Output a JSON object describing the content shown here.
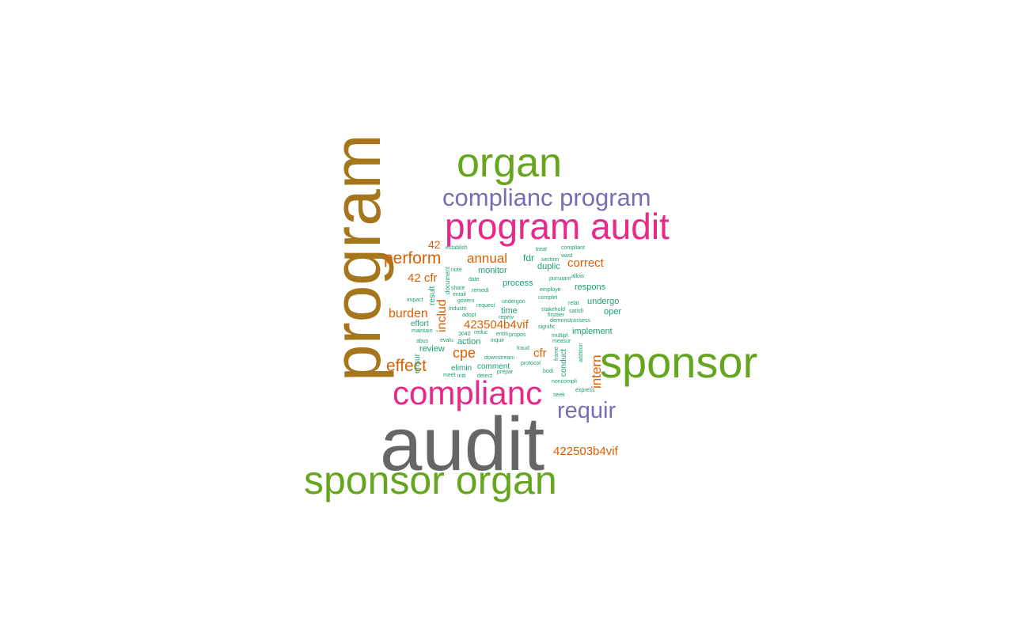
{
  "colors": {
    "teal": "#1b9e77",
    "orange": "#d95f02",
    "purple": "#7570b3",
    "pink": "#e7298a",
    "green": "#66a61e",
    "gold": "#a6761d",
    "gray": "#666666"
  },
  "words": {
    "program": "program",
    "organ": "organ",
    "complianc_program": "complianc program",
    "program_audit": "program audit",
    "sponsor": "sponsor",
    "complianc": "complianc",
    "audit": "audit",
    "sponsor_organ": "sponsor organ",
    "requir": "requir",
    "code_422503b4vif": "422503b4vif",
    "perform": "perform",
    "annual": "annual",
    "correct": "correct",
    "cfr42": "42 cfr",
    "n42": "42",
    "burden": "burden",
    "code_423504b4vif": "423504b4vif",
    "effect": "effect",
    "cpe": "cpe",
    "cfr": "cfr",
    "intern": "intern",
    "includ": "includ",
    "monitor": "monitor",
    "process": "process",
    "fdr": "fdr",
    "duplic": "duplic",
    "respons": "respons",
    "undergo": "undergo",
    "oper": "oper",
    "implement": "implement",
    "time": "time",
    "action": "action",
    "review": "review",
    "ensur": "ensur",
    "elimin": "elimin",
    "comment": "comment",
    "conduct": "conduct",
    "effort": "effort",
    "result": "result",
    "document": "document",
    "establish": "establish",
    "treat": "treat",
    "wast": "wast",
    "compliant": "compliant",
    "section": "section",
    "allow": "allow",
    "note": "note",
    "date": "date",
    "share": "share",
    "remedi": "remedi",
    "entail": "entail",
    "govern": "govern",
    "impact": "impact",
    "industri": "industri",
    "request": "request",
    "adopt": "adopt",
    "reply": "repeiv",
    "undergon": "undergon",
    "employe": "employe",
    "pursuant": "pursuant",
    "complet": "complet",
    "relat": "relat",
    "stakehold": "stakehold",
    "satisfi": "satisfi",
    "firsttier": "firsttier",
    "demonstrassess": "demonstrassess",
    "signific": "signific",
    "measur": "measur",
    "multipl": "multipl",
    "entiti": "entiti",
    "propos": "propos",
    "inquir": "inquir",
    "reduc": "reduc",
    "abus": "abus",
    "evalu": "evalu",
    "maintain": "maintain",
    "n3040": "3040",
    "fraud": "fraud",
    "downstream": "downstream",
    "protocol": "protocol",
    "prepar": "prepar",
    "detect": "detect",
    "meet": "meet",
    "initi": "initi",
    "bodi": "bodi",
    "noncompli": "noncompli",
    "seek": "seek",
    "express": "express",
    "addition": "addition",
    "frame": "frame"
  }
}
